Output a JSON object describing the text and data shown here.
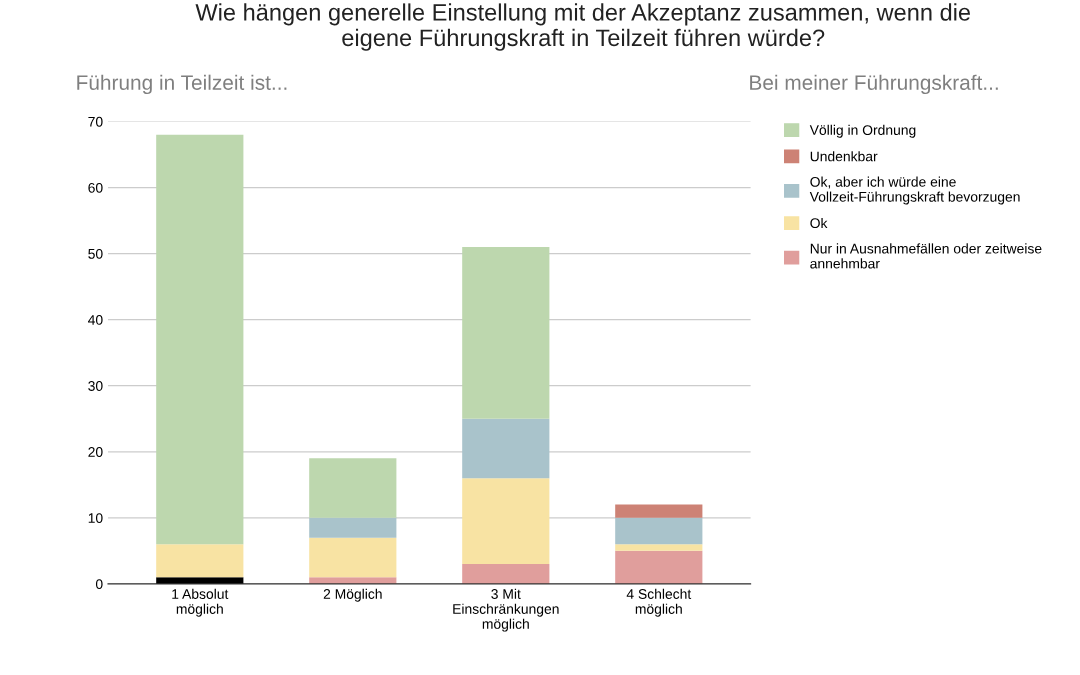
{
  "chart_data": {
    "type": "bar",
    "stacked": true,
    "title": "Wie hängen generelle Einstellung mit der Akzeptanz zusammen, wenn die eigene Führungskraft in Teilzeit führen würde?",
    "subtitle": "Führung in Teilzeit ist...",
    "legend_title": "Bei meiner Führungskraft...",
    "categories": [
      "1 Absolut möglich",
      "2 Möglich",
      "3 Mit Einschränkungen möglich",
      "4 Schlecht möglich"
    ],
    "series": [
      {
        "color": "#000000",
        "values": [
          1,
          0,
          0,
          0
        ]
      },
      {
        "name": "Nur in Ausnahmefällen oder zeitweise annehmbar",
        "color": "#e09e9c",
        "values": [
          0,
          1,
          3,
          5
        ]
      },
      {
        "name": "Ok",
        "color": "#f8e3a3",
        "values": [
          5,
          6,
          13,
          1
        ]
      },
      {
        "name": "Ok, aber ich würde eine Vollzeit-Führungskraft bevorzugen",
        "color": "#a9c3cb",
        "values": [
          0,
          3,
          9,
          4
        ]
      },
      {
        "name": "Undenkbar",
        "color": "#cd8275",
        "values": [
          0,
          0,
          0,
          2
        ]
      },
      {
        "name": "Völlig in Ordnung",
        "color": "#bdd7ae",
        "values": [
          62,
          9,
          26,
          0
        ]
      }
    ],
    "ylim": [
      0,
      70
    ],
    "yticks": [
      0,
      10,
      20,
      30,
      40,
      50,
      60,
      70
    ],
    "grid": "y",
    "legend": "right"
  }
}
